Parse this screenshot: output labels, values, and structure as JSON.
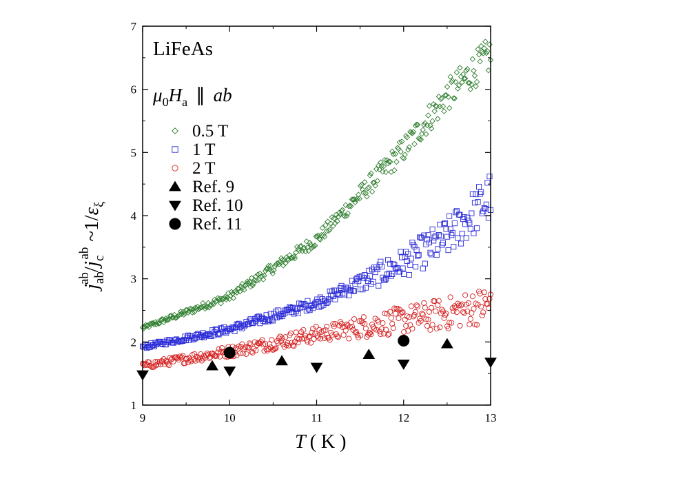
{
  "chart_data": {
    "type": "scatter",
    "title_text": "LiFeAs",
    "field_label": {
      "mu": "μ",
      "sub0": "0",
      "H": "H",
      "suba": "a",
      "par": "∥",
      "ab": "ab"
    },
    "xlabel": {
      "T": "T",
      "unit": "( K )"
    },
    "ylabel": {
      "j": "j",
      "ab_sub": "ab",
      "ab_sup": "ab",
      "slash": "/",
      "jc": "j",
      "c_sub": "c",
      "ab_sup2": "ab",
      "approx": "~1/",
      "eps": "ε",
      "xi": "ξ"
    },
    "xlim": [
      9,
      13
    ],
    "ylim": [
      1,
      7
    ],
    "xticks": [
      "9",
      "10",
      "11",
      "12",
      "13"
    ],
    "yticks": [
      "1",
      "2",
      "3",
      "4",
      "5",
      "6",
      "7"
    ],
    "legend_position": "upper-left",
    "series": [
      {
        "name": "0.5 T",
        "marker": "diamond",
        "color": "#2e7d2e",
        "trend": [
          [
            9.0,
            2.22
          ],
          [
            10.0,
            2.72
          ],
          [
            11.0,
            3.62
          ],
          [
            12.0,
            5.05
          ],
          [
            12.5,
            5.9
          ],
          [
            13.0,
            6.55
          ]
        ],
        "spread": [
          0.03,
          0.12,
          0.3
        ]
      },
      {
        "name": "1 T",
        "marker": "square",
        "color": "#2a2ad8",
        "trend": [
          [
            9.0,
            1.92
          ],
          [
            10.0,
            2.2
          ],
          [
            11.0,
            2.62
          ],
          [
            12.0,
            3.25
          ],
          [
            12.5,
            3.65
          ],
          [
            13.0,
            4.3
          ]
        ],
        "spread": [
          0.03,
          0.1,
          0.4
        ]
      },
      {
        "name": "2 T",
        "marker": "circle",
        "color": "#d62020",
        "trend": [
          [
            9.0,
            1.62
          ],
          [
            10.0,
            1.85
          ],
          [
            11.0,
            2.12
          ],
          [
            12.0,
            2.35
          ],
          [
            12.5,
            2.45
          ],
          [
            13.0,
            2.6
          ]
        ],
        "spread": [
          0.05,
          0.15,
          0.3
        ]
      },
      {
        "name": "Ref. 9",
        "marker": "triangle-up",
        "color": "#000000",
        "points": [
          [
            9.8,
            1.62
          ],
          [
            10.6,
            1.7
          ],
          [
            11.6,
            1.8
          ],
          [
            12.5,
            1.97
          ]
        ]
      },
      {
        "name": "Ref. 10",
        "marker": "triangle-down",
        "color": "#000000",
        "points": [
          [
            9.0,
            1.48
          ],
          [
            10.0,
            1.54
          ],
          [
            11.0,
            1.6
          ],
          [
            12.0,
            1.65
          ],
          [
            13.0,
            1.68
          ]
        ]
      },
      {
        "name": "Ref. 11",
        "marker": "filled-circle",
        "color": "#000000",
        "points": [
          [
            10.0,
            1.83
          ],
          [
            12.0,
            2.02
          ]
        ]
      }
    ]
  }
}
